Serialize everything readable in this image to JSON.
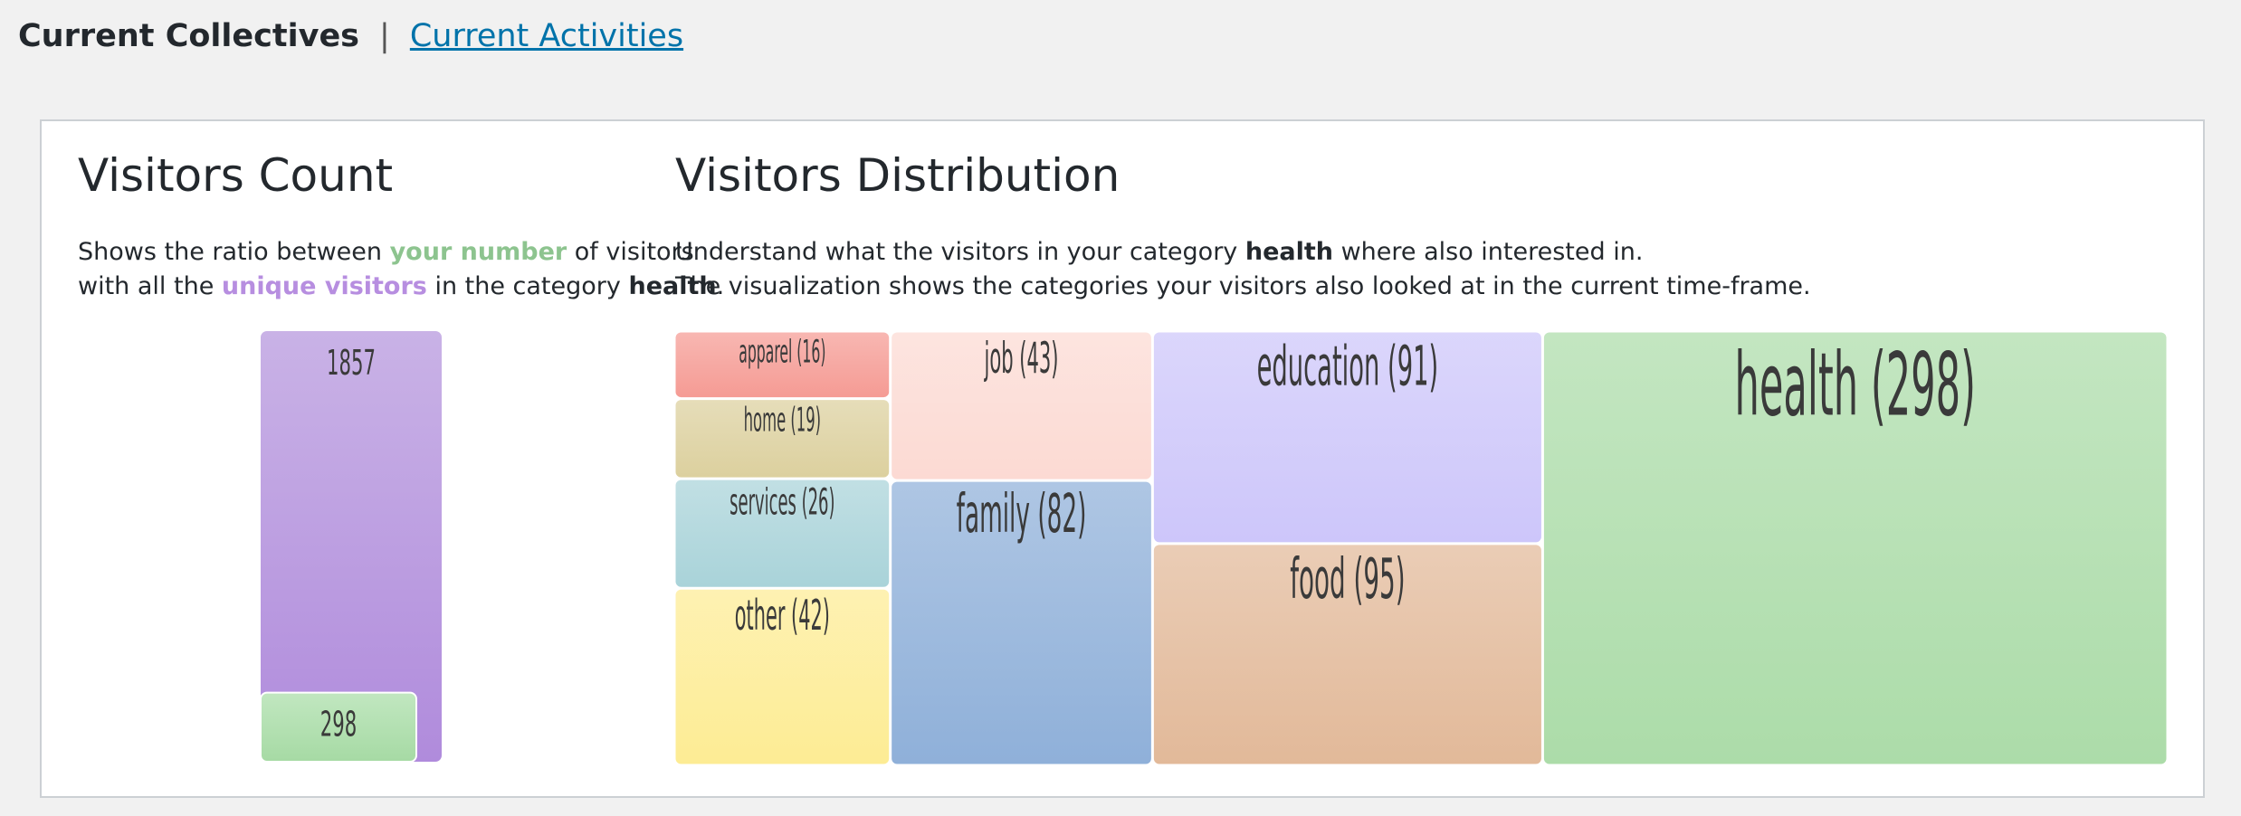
{
  "nav": {
    "current_label": "Current Collectives",
    "separator": "|",
    "activities_link": "Current Activities"
  },
  "visitors_count": {
    "title": "Visitors Count",
    "desc": {
      "p1": "Shows the ratio between ",
      "your_number": "your number",
      "p2": " of visitors",
      "p3": "with all the ",
      "unique_visitors": "unique visitors",
      "p4": " in the category ",
      "category": "health",
      "p5": "."
    },
    "colors": {
      "your_number": "#8dc48f",
      "unique_visitors": "#b78ee0"
    }
  },
  "visitors_distribution": {
    "title": "Visitors Distribution",
    "desc": {
      "p1": "Understand what the visitors in your category ",
      "category": "health",
      "p2": " where also interested in.",
      "line2": "The visualization shows the categories your visitors also looked at in the current time-frame."
    }
  },
  "chart_data": [
    {
      "type": "bar",
      "categories": [
        "unique visitors",
        "your number"
      ],
      "values": [
        1857,
        298
      ],
      "labels": [
        "1857",
        "298"
      ],
      "colors": [
        "#b48edc",
        "#a8dba8"
      ]
    },
    {
      "type": "treemap",
      "items": [
        {
          "name": "apparel",
          "value": 16,
          "label": "apparel (16)",
          "color": "#f59b94"
        },
        {
          "name": "home",
          "value": 19,
          "label": "home (19)",
          "color": "#dcd09e"
        },
        {
          "name": "services",
          "value": 26,
          "label": "services (26)",
          "color": "#a9d3d9"
        },
        {
          "name": "other",
          "value": 42,
          "label": "other (42)",
          "color": "#fdec94"
        },
        {
          "name": "job",
          "value": 43,
          "label": "job (43)",
          "color": "#fcdad3"
        },
        {
          "name": "family",
          "value": 82,
          "label": "family (82)",
          "color": "#8fb0d9"
        },
        {
          "name": "education",
          "value": 91,
          "label": "education (91)",
          "color": "#cdc6fa"
        },
        {
          "name": "food",
          "value": 95,
          "label": "food (95)",
          "color": "#e2b999"
        },
        {
          "name": "health",
          "value": 298,
          "label": "health (298)",
          "color": "#acdca9"
        }
      ]
    }
  ]
}
